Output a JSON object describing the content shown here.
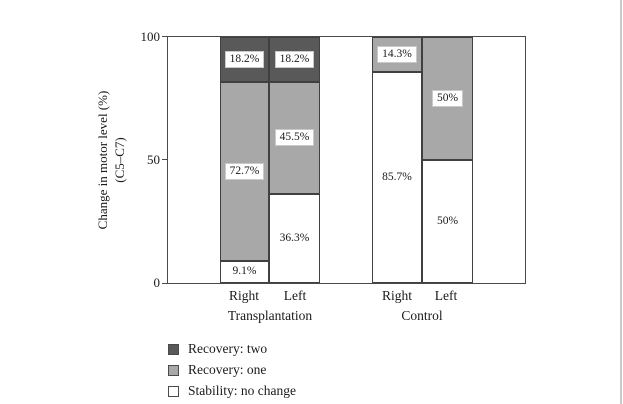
{
  "chart_data": {
    "type": "bar",
    "subtype": "stacked-percentage",
    "ylabel_line1": "Change in motor level (%)",
    "ylabel_line2": "(C5–C7)",
    "ylim": [
      0,
      100
    ],
    "ytick_labels": [
      "100",
      "50",
      "0"
    ],
    "grid": false,
    "legend_position": "bottom-left",
    "groups": [
      {
        "label": "Transplantation",
        "bars": [
          {
            "label": "Right",
            "segments": [
              {
                "name": "Stability: no change",
                "value": 9.1,
                "display": "9.1%"
              },
              {
                "name": "Recovery: one",
                "value": 72.7,
                "display": "72.7%"
              },
              {
                "name": "Recovery: two",
                "value": 18.2,
                "display": "18.2%"
              }
            ]
          },
          {
            "label": "Left",
            "segments": [
              {
                "name": "Stability: no change",
                "value": 36.3,
                "display": "36.3%"
              },
              {
                "name": "Recovery: one",
                "value": 45.5,
                "display": "45.5%"
              },
              {
                "name": "Recovery: two",
                "value": 18.2,
                "display": "18.2%"
              }
            ]
          }
        ]
      },
      {
        "label": "Control",
        "bars": [
          {
            "label": "Right",
            "segments": [
              {
                "name": "Stability: no change",
                "value": 85.7,
                "display": "85.7%"
              },
              {
                "name": "Recovery: one",
                "value": 14.3,
                "display": "14.3%"
              }
            ]
          },
          {
            "label": "Left",
            "segments": [
              {
                "name": "Stability: no change",
                "value": 50,
                "display": "50%"
              },
              {
                "name": "Recovery: one",
                "value": 50,
                "display": "50%"
              }
            ]
          }
        ]
      }
    ],
    "legend": [
      {
        "label": "Recovery: two",
        "color": "#595959"
      },
      {
        "label": "Recovery: one",
        "color": "#a8a8a8"
      },
      {
        "label": "Stability: no change",
        "color": "#ffffff"
      }
    ]
  }
}
